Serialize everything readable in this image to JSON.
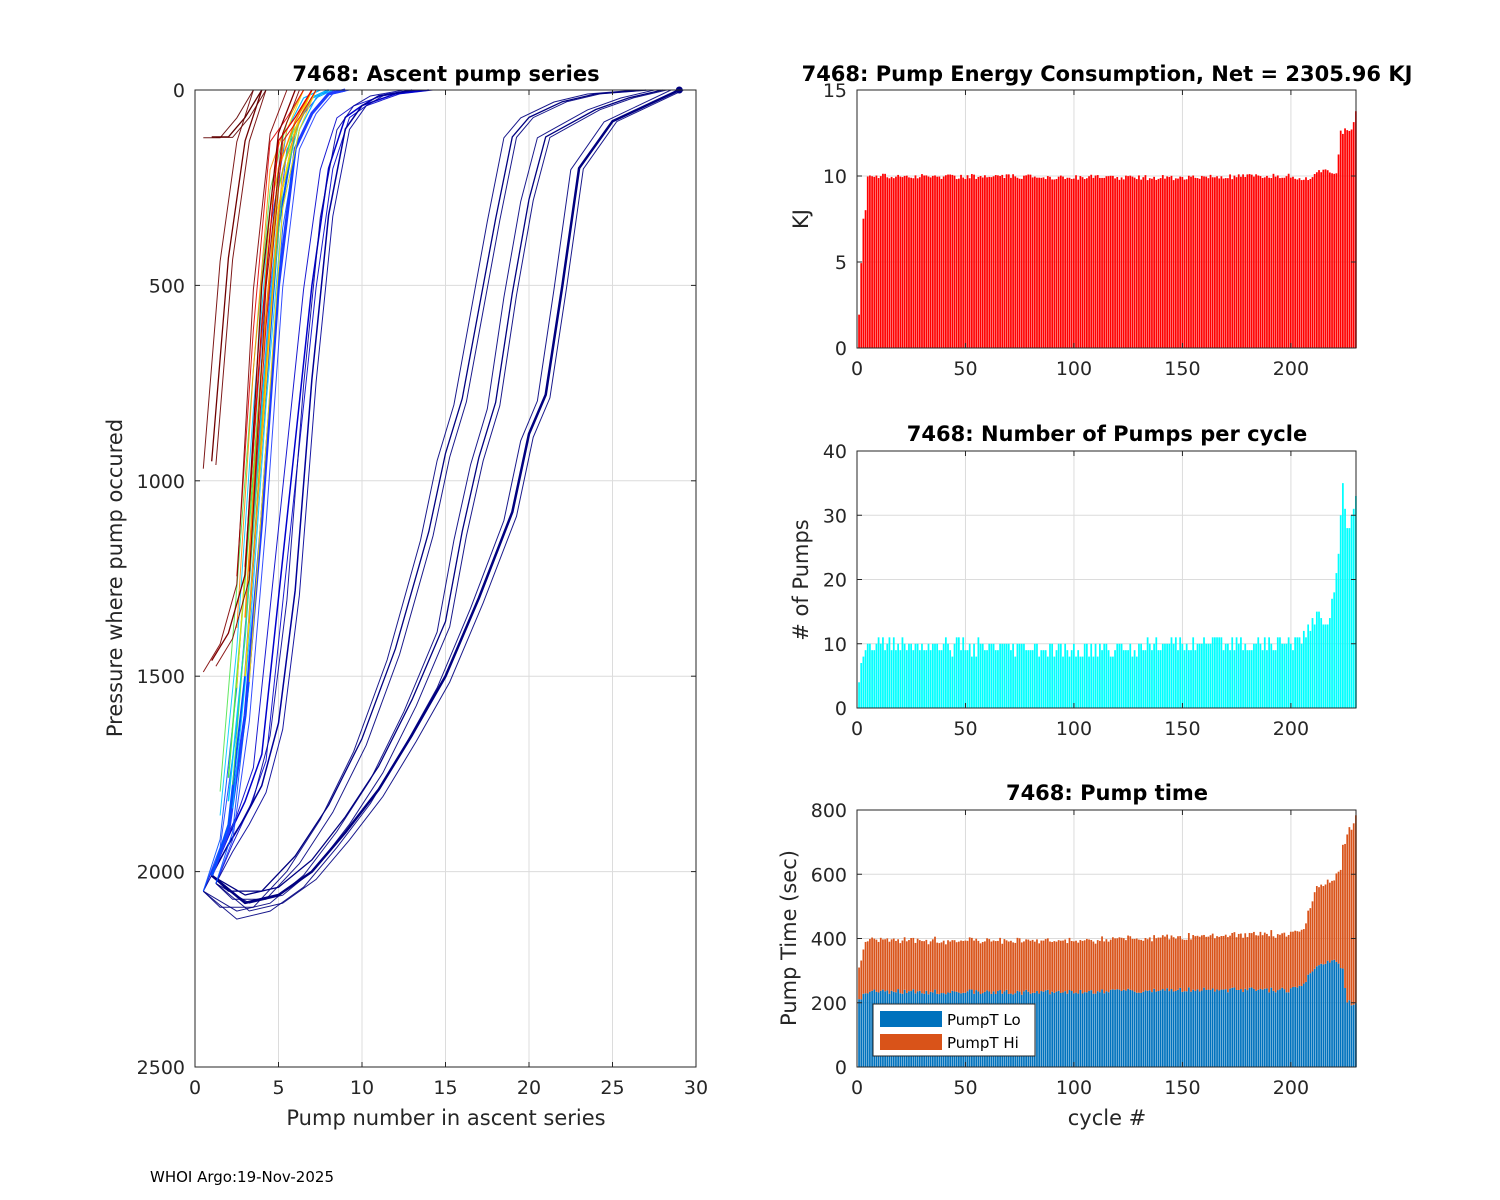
{
  "footer": "WHOI Argo:19-Nov-2025",
  "colors": {
    "energy": "#ff0000",
    "pumps": "#00ffff",
    "pump_lo": "#0072bd",
    "pump_hi": "#d95319",
    "deep_line": "#000080",
    "grid": "#dcdcdc"
  },
  "chart_data": [
    {
      "id": "ascent",
      "type": "line",
      "title": "7468: Ascent pump series",
      "xlabel": "Pump number in ascent series",
      "ylabel": "Pressure where pump occured",
      "xlim": [
        0,
        30
      ],
      "ylim": [
        0,
        2500
      ],
      "y_reversed": true,
      "xticks": [
        0,
        5,
        10,
        15,
        20,
        25,
        30
      ],
      "yticks": [
        0,
        500,
        1000,
        1500,
        2000,
        2500
      ],
      "series": [
        {
          "name": "deep-ascents",
          "color": "#000080",
          "width": 2.5,
          "x": [
            1,
            3,
            5,
            7,
            9,
            11,
            13,
            15,
            17,
            19,
            20,
            21,
            22,
            23,
            25,
            27,
            29
          ],
          "y": [
            2010,
            2080,
            2060,
            2000,
            1900,
            1790,
            1650,
            1500,
            1300,
            1080,
            880,
            780,
            500,
            200,
            80,
            40,
            0
          ]
        },
        {
          "name": "deep-ascents-b",
          "color": "#000080",
          "width": 1.3,
          "x": [
            1,
            3,
            5,
            7,
            9,
            11,
            13,
            15,
            16,
            17,
            18,
            19,
            20,
            21,
            24,
            26,
            28
          ],
          "y": [
            2010,
            2060,
            2040,
            1970,
            1860,
            1730,
            1560,
            1360,
            1130,
            940,
            800,
            520,
            280,
            120,
            50,
            20,
            0
          ]
        },
        {
          "name": "deep-ascents-c",
          "color": "#000080",
          "width": 1.3,
          "x": [
            1,
            2,
            4,
            6,
            8,
            10,
            12,
            14,
            15,
            16,
            17,
            18,
            19,
            20,
            22,
            24,
            27
          ],
          "y": [
            2010,
            2050,
            2050,
            1960,
            1830,
            1660,
            1430,
            1130,
            930,
            790,
            560,
            330,
            120,
            70,
            30,
            10,
            0
          ]
        },
        {
          "name": "mid-ascents",
          "color": "#0000cd",
          "width": 1.5,
          "x": [
            1,
            2,
            3,
            4,
            5,
            6,
            7,
            8,
            9,
            10,
            12,
            14
          ],
          "y": [
            2010,
            1910,
            1820,
            1700,
            1300,
            900,
            500,
            200,
            70,
            40,
            10,
            0
          ]
        },
        {
          "name": "mid-ascents-b",
          "color": "#000099",
          "width": 1.5,
          "x": [
            1,
            2,
            3,
            4,
            5,
            6,
            7,
            8,
            9,
            10,
            11,
            13
          ],
          "y": [
            2010,
            1930,
            1860,
            1780,
            1620,
            1280,
            740,
            320,
            100,
            40,
            15,
            0
          ]
        },
        {
          "name": "main-blue",
          "color": "#1e3cff",
          "width": 3,
          "x": [
            1,
            2,
            3,
            4,
            5,
            6,
            7,
            8,
            9
          ],
          "y": [
            2010,
            1900,
            1600,
            1100,
            500,
            150,
            60,
            10,
            0
          ]
        },
        {
          "name": "main-blue-b",
          "color": "#0050ff",
          "width": 2,
          "x": [
            1,
            2,
            3,
            4,
            5,
            6,
            7,
            8
          ],
          "y": [
            2010,
            1880,
            1500,
            900,
            350,
            100,
            20,
            0
          ]
        },
        {
          "name": "cyan-ascent",
          "color": "#00c8ff",
          "width": 1.5,
          "x": [
            2,
            3,
            4,
            5,
            6,
            7,
            8
          ],
          "y": [
            1820,
            1400,
            800,
            300,
            100,
            20,
            0
          ]
        },
        {
          "name": "green-ascent",
          "color": "#50e650",
          "width": 1.5,
          "x": [
            2,
            3,
            4,
            5,
            6,
            7
          ],
          "y": [
            1760,
            1250,
            700,
            250,
            80,
            0
          ]
        },
        {
          "name": "yellow-ascent",
          "color": "#ffd700",
          "width": 1.5,
          "x": [
            3,
            4,
            5,
            6,
            7
          ],
          "y": [
            1500,
            900,
            300,
            100,
            0
          ]
        },
        {
          "name": "orange-ascent",
          "color": "#ff8c00",
          "width": 1.5,
          "x": [
            3,
            4,
            5,
            6,
            7
          ],
          "y": [
            1350,
            700,
            200,
            80,
            0
          ]
        },
        {
          "name": "red-ascent",
          "color": "#e00000",
          "width": 1.3,
          "x": [
            3,
            4,
            5,
            6,
            7
          ],
          "y": [
            1220,
            600,
            130,
            70,
            0
          ]
        },
        {
          "name": "maroon-ascent",
          "color": "#800000",
          "width": 1.3,
          "x": [
            1,
            2,
            3,
            4,
            5,
            6
          ],
          "y": [
            1460,
            1390,
            1240,
            500,
            110,
            0
          ]
        },
        {
          "name": "maroon-short",
          "color": "#700000",
          "width": 1.3,
          "x": [
            1,
            2,
            3,
            4
          ],
          "y": [
            950,
            430,
            130,
            0
          ]
        },
        {
          "name": "maroon-shallow",
          "color": "#600000",
          "width": 1.3,
          "x": [
            1,
            2,
            3,
            4
          ],
          "y": [
            120,
            120,
            70,
            0
          ]
        }
      ]
    },
    {
      "id": "energy",
      "type": "bar",
      "title": "7468: Pump Energy Consumption,  Net = 2305.96 KJ",
      "xlabel": "",
      "ylabel": "KJ",
      "xlim": [
        0,
        230
      ],
      "ylim": [
        0,
        15
      ],
      "xticks": [
        0,
        50,
        100,
        150,
        200
      ],
      "yticks": [
        0,
        5,
        10,
        15
      ],
      "color": "#ff0000",
      "n_cycles": 230,
      "profile": [
        [
          1,
          1.8
        ],
        [
          2,
          5.0
        ],
        [
          3,
          7.5
        ],
        [
          4,
          8.0
        ],
        [
          5,
          10.0
        ],
        [
          150,
          9.9
        ],
        [
          200,
          10.0
        ],
        [
          208,
          9.8
        ],
        [
          212,
          10.3
        ],
        [
          221,
          10.2
        ],
        [
          223,
          12.5
        ],
        [
          228,
          12.8
        ],
        [
          230,
          13.7
        ]
      ],
      "jitter": 0.15
    },
    {
      "id": "pumps",
      "type": "bar",
      "title": "7468: Number of Pumps per cycle",
      "xlabel": "",
      "ylabel": "# of Pumps",
      "xlim": [
        0,
        230
      ],
      "ylim": [
        0,
        40
      ],
      "xticks": [
        0,
        50,
        100,
        150,
        200
      ],
      "yticks": [
        0,
        10,
        20,
        30,
        40
      ],
      "color": "#00ffff",
      "n_cycles": 230,
      "profile": [
        [
          1,
          5
        ],
        [
          2,
          7
        ],
        [
          3,
          8
        ],
        [
          5,
          10
        ],
        [
          100,
          9
        ],
        [
          150,
          10
        ],
        [
          200,
          10
        ],
        [
          208,
          12
        ],
        [
          212,
          14
        ],
        [
          218,
          14
        ],
        [
          222,
          24
        ],
        [
          224,
          34
        ],
        [
          226,
          28
        ],
        [
          230,
          32
        ]
      ],
      "jitter": 1.2
    },
    {
      "id": "pumptime",
      "type": "bar",
      "stacked": true,
      "title": "7468: Pump time",
      "xlabel": "cycle #",
      "ylabel": "Pump Time (sec)",
      "xlim": [
        0,
        230
      ],
      "ylim": [
        0,
        800
      ],
      "xticks": [
        0,
        50,
        100,
        150,
        200
      ],
      "yticks": [
        0,
        200,
        400,
        600,
        800
      ],
      "n_cycles": 230,
      "series": [
        {
          "name": "PumpT Lo",
          "color": "#0072bd",
          "profile": [
            [
              1,
              210
            ],
            [
              4,
              235
            ],
            [
              100,
              232
            ],
            [
              150,
              240
            ],
            [
              200,
              240
            ],
            [
              206,
              260
            ],
            [
              212,
              320
            ],
            [
              220,
              330
            ],
            [
              224,
              300
            ],
            [
              226,
              200
            ],
            [
              230,
              200
            ]
          ],
          "jitter": 8
        },
        {
          "name": "PumpT Hi",
          "color": "#d95319",
          "profile": [
            [
              1,
              100
            ],
            [
              4,
              160
            ],
            [
              100,
              160
            ],
            [
              150,
              165
            ],
            [
              200,
              175
            ],
            [
              206,
              170
            ],
            [
              212,
              245
            ],
            [
              220,
              250
            ],
            [
              223,
              310
            ],
            [
              226,
              520
            ],
            [
              230,
              580
            ]
          ],
          "jitter": 6
        }
      ],
      "legend": [
        "PumpT Lo",
        "PumpT Hi"
      ],
      "legend_position": "bottom-left"
    }
  ]
}
